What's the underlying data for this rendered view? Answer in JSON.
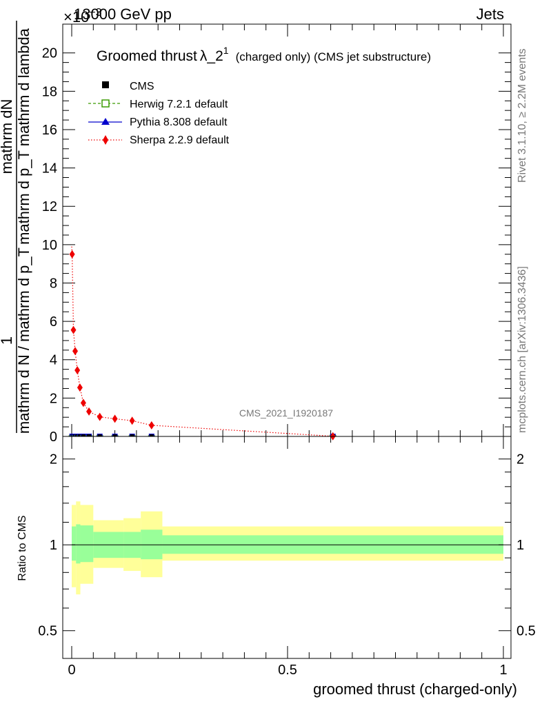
{
  "header": {
    "left": "13000 GeV pp",
    "right": "Jets",
    "exponent_label": "×10",
    "exponent_power": "−3"
  },
  "side_labels": {
    "rivet": "Rivet 3.1.10, ≥ 2.2M events",
    "mcplots": "mcplots.cern.ch [arXiv:1306.3436]"
  },
  "watermark": "CMS_2021_I1920187",
  "legend": {
    "title_main": "Groomed thrust",
    "title_lambda": "λ_2",
    "title_sup": "1",
    "title_rest": "(charged only) (CMS jet substructure)",
    "entries": [
      {
        "label": "CMS",
        "color": "#000000",
        "marker": "square-filled"
      },
      {
        "label": "Herwig 7.2.1 default",
        "color": "#3a9a00",
        "marker": "square-open"
      },
      {
        "label": "Pythia 8.308 default",
        "color": "#0000cc",
        "marker": "triangle"
      },
      {
        "label": "Sherpa 2.2.9 default",
        "color": "#ee0000",
        "marker": "diamond"
      }
    ]
  },
  "axes": {
    "ylabel_numerator": "mathrm dN",
    "ylabel_denominator": "mathrm d p_T mathrm d lambda",
    "ylabel_one": "1",
    "ylabel_bottom": "mathrm d N / mathrm d p_T",
    "ratio_ylabel": "Ratio to CMS",
    "xlabel": "groomed thrust (charged-only)"
  },
  "chart_data": [
    {
      "type": "scatter",
      "panel": "main",
      "ylim": [
        0,
        21.5
      ],
      "y_scale_factor": "1e-3",
      "xlim": [
        -0.02,
        1.0
      ],
      "yticks": [
        0,
        2,
        4,
        6,
        8,
        10,
        12,
        14,
        16,
        18,
        20
      ],
      "series": [
        {
          "name": "Sherpa 2.2.9 default",
          "x": [
            0.001,
            0.004,
            0.008,
            0.013,
            0.019,
            0.027,
            0.04,
            0.065,
            0.1,
            0.14,
            0.185,
            0.605
          ],
          "y": [
            9.5,
            5.55,
            4.45,
            3.45,
            2.55,
            1.75,
            1.3,
            1.02,
            0.92,
            0.82,
            0.58,
            0.01
          ]
        },
        {
          "name": "CMS",
          "x": [
            0.001,
            0.004,
            0.008,
            0.013,
            0.019,
            0.027,
            0.04,
            0.065,
            0.1,
            0.14,
            0.185,
            0.605
          ],
          "y": [
            0,
            0,
            0,
            0,
            0,
            0,
            0,
            0,
            0,
            0,
            0,
            0
          ]
        }
      ]
    },
    {
      "type": "area",
      "panel": "ratio",
      "ylabel": "Ratio to CMS",
      "ylim": [
        0.3995,
        2.4
      ],
      "y_scale": "log",
      "yticks": [
        0.5,
        1,
        2
      ],
      "xticks": [
        0,
        0.5,
        1
      ],
      "xlabel": "groomed thrust (charged-only)",
      "bands": [
        {
          "x0": 0.0,
          "x1": 0.01,
          "inner": [
            0.88,
            1.16
          ],
          "outer": [
            0.71,
            1.38
          ]
        },
        {
          "x0": 0.01,
          "x1": 0.02,
          "inner": [
            0.86,
            1.18
          ],
          "outer": [
            0.67,
            1.42
          ]
        },
        {
          "x0": 0.02,
          "x1": 0.05,
          "inner": [
            0.87,
            1.17
          ],
          "outer": [
            0.73,
            1.38
          ]
        },
        {
          "x0": 0.05,
          "x1": 0.12,
          "inner": [
            0.9,
            1.11
          ],
          "outer": [
            0.83,
            1.22
          ]
        },
        {
          "x0": 0.12,
          "x1": 0.16,
          "inner": [
            0.9,
            1.11
          ],
          "outer": [
            0.81,
            1.24
          ]
        },
        {
          "x0": 0.16,
          "x1": 0.21,
          "inner": [
            0.89,
            1.13
          ],
          "outer": [
            0.77,
            1.31
          ]
        },
        {
          "x0": 0.21,
          "x1": 1.0,
          "inner": [
            0.93,
            1.08
          ],
          "outer": [
            0.88,
            1.16
          ]
        }
      ],
      "reference_line": 1,
      "inner_color": "#99ff99",
      "outer_color": "#ffff99"
    }
  ]
}
